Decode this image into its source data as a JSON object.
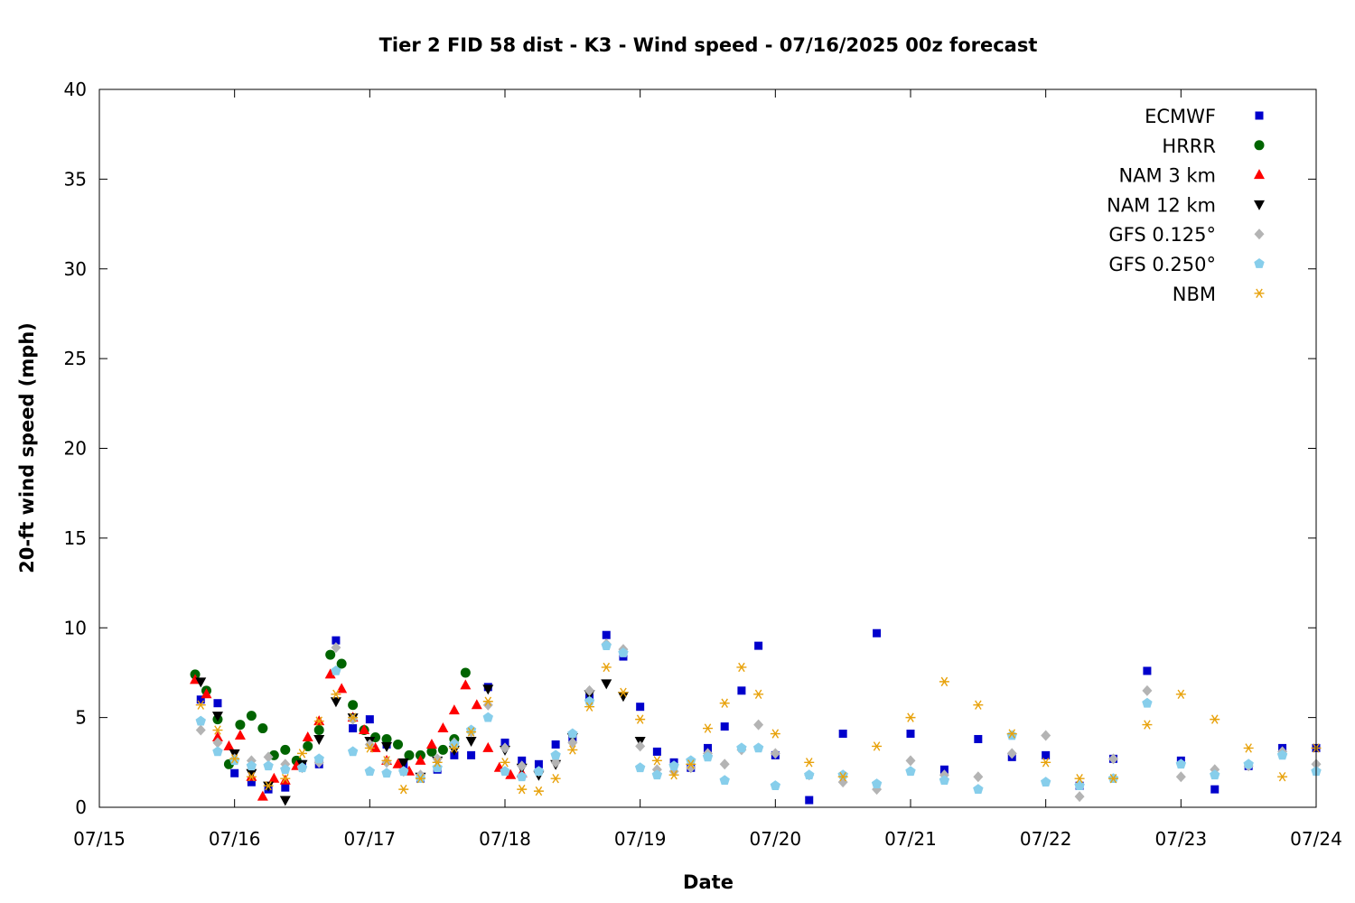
{
  "chart_data": {
    "type": "scatter",
    "title": "Tier 2 FID 58 dist - K3 - Wind speed - 07/16/2025 00z forecast",
    "xlabel": "Date",
    "ylabel": "20-ft wind speed (mph)",
    "xlim": [
      "2025-07-15T00:00",
      "2025-07-24T00:00"
    ],
    "ylim": [
      0,
      40
    ],
    "x_ticks": [
      "07/15",
      "07/16",
      "07/17",
      "07/18",
      "07/19",
      "07/20",
      "07/21",
      "07/22",
      "07/23",
      "07/24"
    ],
    "y_ticks": [
      "0",
      "5",
      "10",
      "15",
      "20",
      "25",
      "30",
      "35",
      "40"
    ],
    "grid": false,
    "legend_position": "top-right",
    "series": [
      {
        "name": "ECMWF",
        "marker": "square",
        "color": "#0000cc",
        "x": [
          "2025-07-15T18:00",
          "2025-07-15T21:00",
          "2025-07-16T00:00",
          "2025-07-16T03:00",
          "2025-07-16T06:00",
          "2025-07-16T09:00",
          "2025-07-16T12:00",
          "2025-07-16T15:00",
          "2025-07-16T18:00",
          "2025-07-16T21:00",
          "2025-07-17T00:00",
          "2025-07-17T03:00",
          "2025-07-17T06:00",
          "2025-07-17T09:00",
          "2025-07-17T12:00",
          "2025-07-17T15:00",
          "2025-07-17T18:00",
          "2025-07-17T21:00",
          "2025-07-18T00:00",
          "2025-07-18T03:00",
          "2025-07-18T06:00",
          "2025-07-18T09:00",
          "2025-07-18T12:00",
          "2025-07-18T15:00",
          "2025-07-18T18:00",
          "2025-07-18T21:00",
          "2025-07-19T00:00",
          "2025-07-19T03:00",
          "2025-07-19T06:00",
          "2025-07-19T09:00",
          "2025-07-19T12:00",
          "2025-07-19T15:00",
          "2025-07-19T18:00",
          "2025-07-19T21:00",
          "2025-07-20T00:00",
          "2025-07-20T06:00",
          "2025-07-20T12:00",
          "2025-07-20T18:00",
          "2025-07-21T00:00",
          "2025-07-21T06:00",
          "2025-07-21T12:00",
          "2025-07-21T18:00",
          "2025-07-22T00:00",
          "2025-07-22T06:00",
          "2025-07-22T12:00",
          "2025-07-22T18:00",
          "2025-07-23T00:00",
          "2025-07-23T06:00",
          "2025-07-23T12:00",
          "2025-07-23T18:00",
          "2025-07-24T00:00"
        ],
        "y": [
          6.0,
          5.8,
          1.9,
          1.4,
          1.0,
          1.1,
          2.4,
          2.4,
          9.3,
          4.4,
          4.9,
          3.5,
          2.4,
          1.6,
          2.1,
          2.9,
          2.9,
          6.7,
          3.6,
          2.6,
          2.4,
          3.5,
          3.8,
          6.1,
          9.6,
          8.4,
          5.6,
          3.1,
          2.5,
          2.2,
          3.3,
          4.5,
          6.5,
          9.0,
          2.9,
          0.4,
          4.1,
          9.7,
          4.1,
          2.1,
          3.8,
          2.8,
          2.9,
          1.2,
          2.7,
          7.6,
          2.6,
          1.0,
          2.3,
          3.3,
          3.3
        ]
      },
      {
        "name": "HRRR",
        "marker": "circle",
        "color": "#006400",
        "x": [
          "2025-07-15T17:00",
          "2025-07-15T19:00",
          "2025-07-15T21:00",
          "2025-07-15T23:00",
          "2025-07-16T01:00",
          "2025-07-16T03:00",
          "2025-07-16T05:00",
          "2025-07-16T07:00",
          "2025-07-16T09:00",
          "2025-07-16T11:00",
          "2025-07-16T13:00",
          "2025-07-16T15:00",
          "2025-07-16T17:00",
          "2025-07-16T19:00",
          "2025-07-16T21:00",
          "2025-07-16T23:00",
          "2025-07-17T01:00",
          "2025-07-17T03:00",
          "2025-07-17T05:00",
          "2025-07-17T07:00",
          "2025-07-17T09:00",
          "2025-07-17T11:00",
          "2025-07-17T13:00",
          "2025-07-17T15:00",
          "2025-07-17T17:00"
        ],
        "y": [
          7.4,
          6.5,
          4.9,
          2.4,
          4.6,
          5.1,
          4.4,
          2.9,
          3.2,
          2.6,
          3.4,
          4.3,
          8.5,
          8.0,
          5.7,
          4.3,
          3.9,
          3.8,
          3.5,
          2.9,
          2.9,
          3.1,
          3.2,
          3.8,
          7.5
        ]
      },
      {
        "name": "NAM 3 km",
        "marker": "triangle-up",
        "color": "#ff0000",
        "x": [
          "2025-07-15T17:00",
          "2025-07-15T19:00",
          "2025-07-15T21:00",
          "2025-07-15T23:00",
          "2025-07-16T01:00",
          "2025-07-16T03:00",
          "2025-07-16T05:00",
          "2025-07-16T07:00",
          "2025-07-16T09:00",
          "2025-07-16T11:00",
          "2025-07-16T13:00",
          "2025-07-16T15:00",
          "2025-07-16T17:00",
          "2025-07-16T19:00",
          "2025-07-16T21:00",
          "2025-07-16T23:00",
          "2025-07-17T01:00",
          "2025-07-17T03:00",
          "2025-07-17T05:00",
          "2025-07-17T07:00",
          "2025-07-17T09:00",
          "2025-07-17T11:00",
          "2025-07-17T13:00",
          "2025-07-17T15:00",
          "2025-07-17T17:00",
          "2025-07-17T19:00",
          "2025-07-17T21:00",
          "2025-07-17T23:00",
          "2025-07-18T01:00",
          "2025-07-18T03:00"
        ],
        "y": [
          7.1,
          6.3,
          3.9,
          3.4,
          4.0,
          1.7,
          0.6,
          1.6,
          1.5,
          2.3,
          3.9,
          4.8,
          7.4,
          6.6,
          5.0,
          4.3,
          3.3,
          2.6,
          2.4,
          2.0,
          2.6,
          3.5,
          4.4,
          5.4,
          6.8,
          5.7,
          3.3,
          2.2,
          1.8,
          1.9
        ]
      },
      {
        "name": "NAM 12 km",
        "marker": "triangle-down",
        "color": "#000000",
        "x": [
          "2025-07-15T18:00",
          "2025-07-15T21:00",
          "2025-07-16T00:00",
          "2025-07-16T03:00",
          "2025-07-16T06:00",
          "2025-07-16T09:00",
          "2025-07-16T12:00",
          "2025-07-16T15:00",
          "2025-07-16T18:00",
          "2025-07-16T21:00",
          "2025-07-17T00:00",
          "2025-07-17T03:00",
          "2025-07-17T06:00",
          "2025-07-17T09:00",
          "2025-07-17T12:00",
          "2025-07-17T15:00",
          "2025-07-17T18:00",
          "2025-07-17T21:00",
          "2025-07-18T00:00",
          "2025-07-18T03:00",
          "2025-07-18T06:00",
          "2025-07-18T09:00",
          "2025-07-18T12:00",
          "2025-07-18T15:00",
          "2025-07-18T18:00",
          "2025-07-18T21:00",
          "2025-07-19T00:00"
        ],
        "y": [
          7.0,
          5.1,
          3.0,
          1.9,
          1.2,
          0.4,
          2.4,
          3.8,
          5.9,
          5.0,
          3.7,
          3.4,
          2.5,
          1.7,
          2.6,
          3.2,
          3.7,
          6.6,
          3.2,
          2.2,
          1.8,
          2.4,
          3.9,
          6.3,
          6.9,
          6.2,
          3.7
        ]
      },
      {
        "name": "GFS 0.125°",
        "marker": "diamond",
        "color": "#b4b4b4",
        "x": [
          "2025-07-15T18:00",
          "2025-07-15T21:00",
          "2025-07-16T00:00",
          "2025-07-16T03:00",
          "2025-07-16T06:00",
          "2025-07-16T09:00",
          "2025-07-16T12:00",
          "2025-07-16T15:00",
          "2025-07-16T18:00",
          "2025-07-16T21:00",
          "2025-07-17T00:00",
          "2025-07-17T03:00",
          "2025-07-17T06:00",
          "2025-07-17T09:00",
          "2025-07-17T12:00",
          "2025-07-17T15:00",
          "2025-07-17T18:00",
          "2025-07-17T21:00",
          "2025-07-18T00:00",
          "2025-07-18T03:00",
          "2025-07-18T06:00",
          "2025-07-18T09:00",
          "2025-07-18T12:00",
          "2025-07-18T15:00",
          "2025-07-18T18:00",
          "2025-07-18T21:00",
          "2025-07-19T00:00",
          "2025-07-19T03:00",
          "2025-07-19T06:00",
          "2025-07-19T09:00",
          "2025-07-19T12:00",
          "2025-07-19T15:00",
          "2025-07-19T18:00",
          "2025-07-19T21:00",
          "2025-07-20T00:00",
          "2025-07-20T06:00",
          "2025-07-20T12:00",
          "2025-07-20T18:00",
          "2025-07-21T00:00",
          "2025-07-21T06:00",
          "2025-07-21T12:00",
          "2025-07-21T18:00",
          "2025-07-22T00:00",
          "2025-07-22T06:00",
          "2025-07-22T12:00",
          "2025-07-22T18:00",
          "2025-07-23T00:00",
          "2025-07-23T06:00",
          "2025-07-23T12:00",
          "2025-07-23T18:00",
          "2025-07-24T00:00"
        ],
        "y": [
          4.3,
          3.6,
          2.7,
          2.6,
          2.8,
          2.4,
          2.2,
          2.5,
          8.9,
          4.9,
          3.5,
          2.5,
          2.0,
          1.8,
          2.7,
          3.6,
          4.2,
          5.7,
          3.3,
          2.3,
          2.0,
          2.5,
          3.6,
          6.5,
          9.1,
          8.8,
          3.4,
          2.1,
          2.0,
          2.2,
          3.0,
          2.4,
          3.2,
          4.6,
          3.0,
          1.8,
          1.4,
          1.0,
          2.6,
          1.8,
          1.7,
          3.0,
          4.0,
          0.6,
          2.7,
          6.5,
          1.7,
          2.1,
          2.3,
          3.1,
          2.4
        ]
      },
      {
        "name": "GFS 0.250°",
        "marker": "pentagon",
        "color": "#87ceeb",
        "x": [
          "2025-07-15T18:00",
          "2025-07-15T21:00",
          "2025-07-16T00:00",
          "2025-07-16T03:00",
          "2025-07-16T06:00",
          "2025-07-16T09:00",
          "2025-07-16T12:00",
          "2025-07-16T15:00",
          "2025-07-16T18:00",
          "2025-07-16T21:00",
          "2025-07-17T00:00",
          "2025-07-17T03:00",
          "2025-07-17T06:00",
          "2025-07-17T09:00",
          "2025-07-17T12:00",
          "2025-07-17T15:00",
          "2025-07-17T18:00",
          "2025-07-17T21:00",
          "2025-07-18T00:00",
          "2025-07-18T03:00",
          "2025-07-18T06:00",
          "2025-07-18T09:00",
          "2025-07-18T12:00",
          "2025-07-18T15:00",
          "2025-07-18T18:00",
          "2025-07-18T21:00",
          "2025-07-19T00:00",
          "2025-07-19T03:00",
          "2025-07-19T06:00",
          "2025-07-19T09:00",
          "2025-07-19T12:00",
          "2025-07-19T15:00",
          "2025-07-19T18:00",
          "2025-07-19T21:00",
          "2025-07-20T00:00",
          "2025-07-20T06:00",
          "2025-07-20T12:00",
          "2025-07-20T18:00",
          "2025-07-21T00:00",
          "2025-07-21T06:00",
          "2025-07-21T12:00",
          "2025-07-21T18:00",
          "2025-07-22T00:00",
          "2025-07-22T06:00",
          "2025-07-22T12:00",
          "2025-07-22T18:00",
          "2025-07-23T00:00",
          "2025-07-23T06:00",
          "2025-07-23T12:00",
          "2025-07-23T18:00",
          "2025-07-24T00:00"
        ],
        "y": [
          4.8,
          3.1,
          2.6,
          2.3,
          2.3,
          2.1,
          2.2,
          2.7,
          7.6,
          3.1,
          2.0,
          1.9,
          2.0,
          1.6,
          2.2,
          3.5,
          4.3,
          5.0,
          2.0,
          1.7,
          2.0,
          2.9,
          4.1,
          5.9,
          9.0,
          8.6,
          2.2,
          1.8,
          2.3,
          2.6,
          2.8,
          1.5,
          3.3,
          3.3,
          1.2,
          1.8,
          1.8,
          1.3,
          2.0,
          1.5,
          1.0,
          4.0,
          1.4,
          1.2,
          1.6,
          5.8,
          2.4,
          1.8,
          2.4,
          2.9,
          2.0
        ]
      },
      {
        "name": "NBM",
        "marker": "asterisk",
        "color": "#e8a20c",
        "x": [
          "2025-07-15T18:00",
          "2025-07-15T21:00",
          "2025-07-16T00:00",
          "2025-07-16T03:00",
          "2025-07-16T06:00",
          "2025-07-16T09:00",
          "2025-07-16T12:00",
          "2025-07-16T15:00",
          "2025-07-16T18:00",
          "2025-07-16T21:00",
          "2025-07-17T00:00",
          "2025-07-17T03:00",
          "2025-07-17T06:00",
          "2025-07-17T09:00",
          "2025-07-17T12:00",
          "2025-07-17T15:00",
          "2025-07-17T18:00",
          "2025-07-17T21:00",
          "2025-07-18T00:00",
          "2025-07-18T03:00",
          "2025-07-18T06:00",
          "2025-07-18T09:00",
          "2025-07-18T12:00",
          "2025-07-18T15:00",
          "2025-07-18T18:00",
          "2025-07-18T21:00",
          "2025-07-19T00:00",
          "2025-07-19T03:00",
          "2025-07-19T06:00",
          "2025-07-19T09:00",
          "2025-07-19T12:00",
          "2025-07-19T15:00",
          "2025-07-19T18:00",
          "2025-07-19T21:00",
          "2025-07-20T00:00",
          "2025-07-20T06:00",
          "2025-07-20T12:00",
          "2025-07-20T18:00",
          "2025-07-21T00:00",
          "2025-07-21T06:00",
          "2025-07-21T12:00",
          "2025-07-21T18:00",
          "2025-07-22T00:00",
          "2025-07-22T06:00",
          "2025-07-22T12:00",
          "2025-07-22T18:00",
          "2025-07-23T00:00",
          "2025-07-23T06:00",
          "2025-07-23T12:00",
          "2025-07-23T18:00",
          "2025-07-24T00:00"
        ],
        "y": [
          5.7,
          4.3,
          2.7,
          1.7,
          1.2,
          1.6,
          3.0,
          4.8,
          6.3,
          5.0,
          3.3,
          2.6,
          1.0,
          1.6,
          2.5,
          3.3,
          4.2,
          5.9,
          2.5,
          1.0,
          0.9,
          1.6,
          3.2,
          5.6,
          7.8,
          6.4,
          4.9,
          2.6,
          1.8,
          2.4,
          4.4,
          5.8,
          7.8,
          6.3,
          4.1,
          2.5,
          1.7,
          3.4,
          5.0,
          7.0,
          5.7,
          4.1,
          2.5,
          1.6,
          1.6,
          4.6,
          6.3,
          4.9,
          3.3,
          1.7,
          3.3
        ]
      }
    ]
  }
}
